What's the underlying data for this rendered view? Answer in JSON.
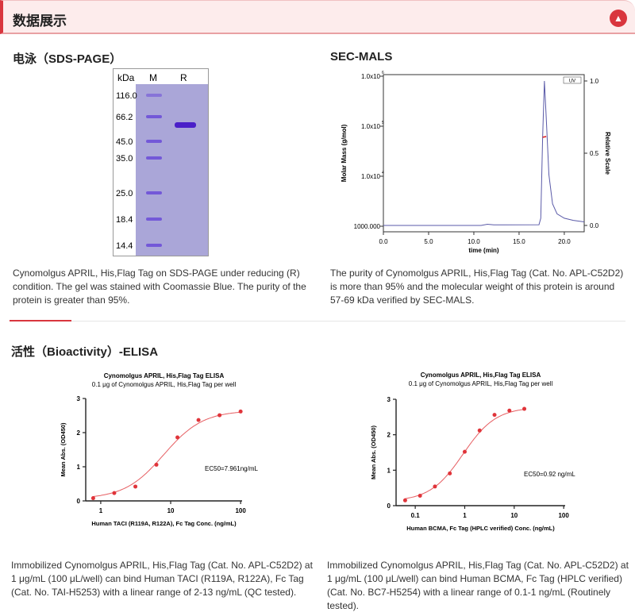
{
  "header": {
    "title": "数据展示",
    "collapse_icon": "chevron-up-icon"
  },
  "sds": {
    "title": "电泳（SDS-PAGE）",
    "gel": {
      "kda_label": "kDa",
      "lane_m": "M",
      "lane_r": "R",
      "markers": [
        "116.0",
        "66.2",
        "45.0",
        "35.0",
        "25.0",
        "18.4",
        "14.4"
      ]
    },
    "caption": "Cynomolgus APRIL, His,Flag Tag on SDS-PAGE under reducing (R) condition. The gel was stained with Coomassie Blue. The purity of the protein is greater than 95%."
  },
  "secmals": {
    "title": "SEC-MALS",
    "caption": "The purity of Cynomolgus APRIL, His,Flag Tag (Cat. No. APL-C52D2) is more than 95% and the molecular weight of this protein is around 57-69 kDa verified by SEC-MALS."
  },
  "bio": {
    "title": "活性（Bioactivity）-ELISA",
    "caption1": "Immobilized Cynomolgus APRIL, His,Flag Tag (Cat. No. APL-C52D2) at 1 μg/mL (100 μL/well) can bind Human TACI (R119A, R122A), Fc Tag (Cat. No. TAI-H5253) with a linear range of 2-13 ng/mL (QC tested).",
    "caption2": "Immobilized Cynomolgus APRIL, His,Flag Tag (Cat. No. APL-C52D2) at 1 μg/mL (100 μL/well) can bind Human BCMA, Fc Tag (HPLC verified) (Cat. No. BC7-H5254) with a linear range of 0.1-1 ng/mL (Routinely tested)."
  },
  "chart_data": [
    {
      "type": "line",
      "title": "",
      "xlabel": "time (min)",
      "ylabel": "Molar Mass (g/mol)",
      "y2label": "Relative Scale",
      "xlim": [
        0,
        22.2
      ],
      "ylim": [
        1000,
        1000000
      ],
      "yscale": "log",
      "y2lim": [
        0,
        1.0
      ],
      "xticks": [
        "0.0",
        "5.0",
        "10.0",
        "15.0",
        "20.0"
      ],
      "xtick_values": [
        0,
        5,
        10,
        15,
        20
      ],
      "yticks": [
        "1000.000",
        "1.0x10",
        "1.0x10",
        "1.0x10"
      ],
      "ytick_exp": [
        "",
        "4",
        "5",
        "6"
      ],
      "ytick_values": [
        1000,
        10000,
        100000,
        1000000
      ],
      "y2ticks": [
        "0.0",
        "0.5",
        "1.0"
      ],
      "y2tick_values": [
        0,
        0.5,
        1.0
      ],
      "legend": "UV",
      "legend_position": "top-right",
      "series": [
        {
          "name": "UV",
          "axis": "right",
          "color": "#5a5aa8",
          "points": [
            [
              0,
              0
            ],
            [
              10.8,
              0
            ],
            [
              11.5,
              0.008
            ],
            [
              12.2,
              0.004
            ],
            [
              17.2,
              0.005
            ],
            [
              17.4,
              0.05
            ],
            [
              17.6,
              0.6
            ],
            [
              17.8,
              1.0
            ],
            [
              18.0,
              0.75
            ],
            [
              18.3,
              0.35
            ],
            [
              18.7,
              0.15
            ],
            [
              19.2,
              0.08
            ],
            [
              20,
              0.05
            ],
            [
              21,
              0.035
            ],
            [
              22.2,
              0.025
            ]
          ]
        },
        {
          "name": "Molar Mass",
          "axis": "left",
          "color": "#d22",
          "points": [
            [
              17.6,
              60000
            ],
            [
              17.75,
              61000
            ],
            [
              18.0,
              62000
            ]
          ]
        }
      ]
    },
    {
      "type": "scatter",
      "title": "Cynomolgus APRIL, His,Flag Tag ELISA",
      "subtitle": "0.1 μg of Cynomolgus APRIL, His,Flag Tag per well",
      "xlabel": "Human TACI (R119A, R122A), Fc Tag Conc. (ng/mL)",
      "ylabel": "Mean Abs. (OD450)",
      "xscale": "log",
      "xlim": [
        0.61,
        105
      ],
      "ylim": [
        0,
        3
      ],
      "xticks": [
        "1",
        "10",
        "100"
      ],
      "xtick_values": [
        1,
        10,
        100
      ],
      "yticks": [
        "0",
        "1",
        "2",
        "3"
      ],
      "ytick_values": [
        0,
        1,
        2,
        3
      ],
      "x": [
        0.78,
        1.56,
        3.13,
        6.25,
        12.5,
        25,
        50,
        100
      ],
      "y": [
        0.08,
        0.23,
        0.42,
        1.06,
        1.86,
        2.37,
        2.51,
        2.62
      ],
      "fit": {
        "bottom": 0.06,
        "top": 2.65,
        "ec50": 7.961,
        "hill": 1.55
      },
      "annotation": "EC50=7.961ng/mL",
      "color": "#e0343a"
    },
    {
      "type": "scatter",
      "title": "Cynomolgus APRIL, His,Flag Tag ELISA",
      "subtitle": "0.1 μg of Cynomolgus APRIL, His,Flag Tag per well",
      "xlabel": "Human BCMA, Fc Tag (HPLC verified) Conc. (ng/mL)",
      "ylabel": "Mean Abs. (OD450)",
      "xscale": "log",
      "xlim": [
        0.041,
        107
      ],
      "ylim": [
        0,
        3
      ],
      "xticks": [
        "0.1",
        "1",
        "10",
        "100"
      ],
      "xtick_values": [
        0.1,
        1,
        10,
        100
      ],
      "yticks": [
        "0",
        "1",
        "2",
        "3"
      ],
      "ytick_values": [
        0,
        1,
        2,
        3
      ],
      "x": [
        0.0625,
        0.125,
        0.25,
        0.5,
        1,
        2,
        4,
        8,
        16
      ],
      "y": [
        0.15,
        0.28,
        0.54,
        0.91,
        1.52,
        2.12,
        2.56,
        2.68,
        2.73
      ],
      "fit": {
        "bottom": 0.12,
        "top": 2.78,
        "ec50": 0.92,
        "hill": 1.3
      },
      "annotation": "EC50=0.92 ng/mL",
      "color": "#e0343a"
    }
  ]
}
